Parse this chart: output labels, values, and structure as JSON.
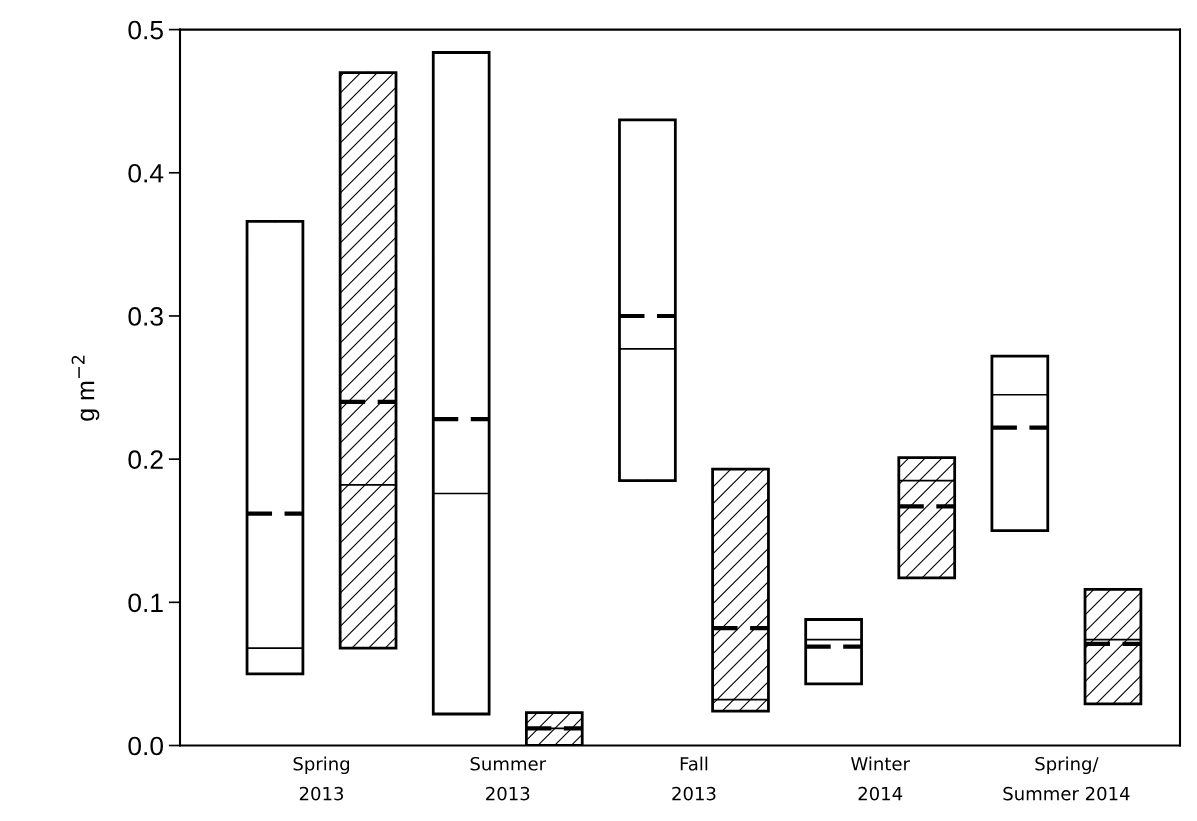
{
  "chart_data": {
    "type": "box",
    "ylabel": "g m$^{−2}$",
    "categories": [
      "Spring\n2013",
      "Summer\n2013",
      "Fall\n2013",
      "Winter\n2014",
      "Spring/\nSummer 2014"
    ],
    "series": [
      {
        "color": "#ffffff",
        "boxes": [
          {
            "low": 0.05,
            "q1": 0.05,
            "median": 0.068,
            "q3": 0.366,
            "high": 0.366,
            "mean": 0.162
          },
          {
            "low": 0.022,
            "q1": 0.022,
            "median": 0.176,
            "q3": 0.484,
            "high": 0.484,
            "mean": 0.228
          },
          {
            "low": 0.185,
            "q1": 0.185,
            "median": 0.277,
            "q3": 0.437,
            "high": 0.437,
            "mean": 0.3
          },
          {
            "low": 0.043,
            "q1": 0.043,
            "median": 0.074,
            "q3": 0.088,
            "high": 0.088,
            "mean": 0.069
          },
          {
            "low": 0.15,
            "q1": 0.15,
            "median": 0.245,
            "q3": 0.272,
            "high": 0.272,
            "mean": 0.222
          }
        ]
      },
      {
        "color": "#000000",
        "boxes": [
          {
            "low": 0.068,
            "q1": 0.068,
            "median": 0.182,
            "q3": 0.47,
            "high": 0.47,
            "mean": 0.24
          },
          {
            "low": 0.0,
            "q1": 0.0,
            "median": 0.012,
            "q3": 0.023,
            "high": 0.023,
            "mean": 0.012
          },
          {
            "low": 0.024,
            "q1": 0.024,
            "median": 0.032,
            "q3": 0.193,
            "high": 0.193,
            "mean": 0.082
          },
          {
            "low": 0.117,
            "q1": 0.117,
            "median": 0.185,
            "q3": 0.201,
            "high": 0.201,
            "mean": 0.167
          },
          {
            "low": 0.029,
            "q1": 0.029,
            "median": 0.074,
            "q3": 0.109,
            "high": 0.109,
            "mean": 0.071
          }
        ]
      }
    ],
    "ylim": [
      0,
      0.5
    ],
    "yticks": [
      {
        "value": 0,
        "label": "0.0"
      },
      {
        "value": 0.1,
        "label": "0.1"
      },
      {
        "value": 0.2,
        "label": "0.2"
      },
      {
        "value": 0.3,
        "label": "0.3"
      },
      {
        "value": 0.4,
        "label": "0.4"
      },
      {
        "value": 0.5,
        "label": "0.5"
      }
    ],
    "grid": false,
    "legend": false
  }
}
